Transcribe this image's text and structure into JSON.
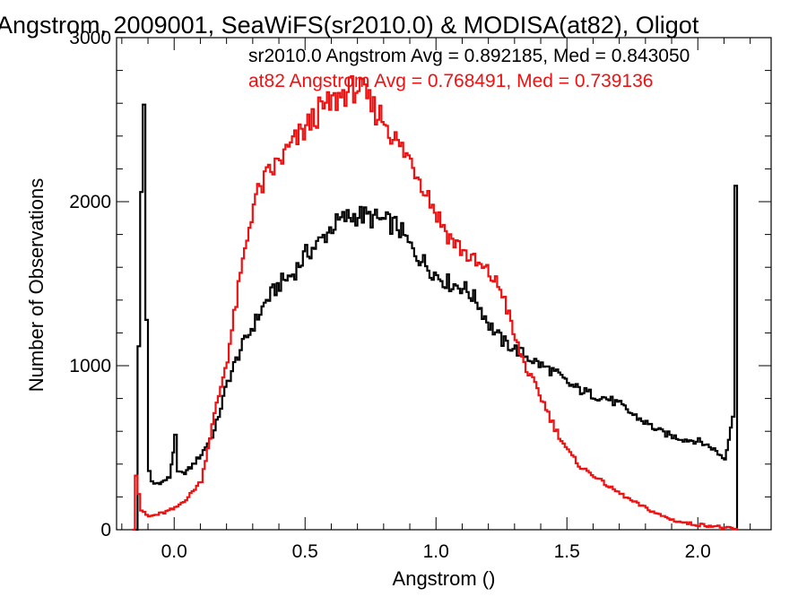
{
  "chart_data": {
    "type": "line",
    "title": "Angstrom, 2009001, SeaWiFS(sr2010.0) & MODISA(at82), Oligot",
    "xlabel": "Angstrom ()",
    "ylabel": "Number of Observations",
    "xlim": [
      -0.22,
      2.28
    ],
    "ylim": [
      0,
      3000
    ],
    "x_ticks": [
      0.0,
      0.5,
      1.0,
      1.5,
      2.0
    ],
    "x_tick_labels": [
      "0.0",
      "0.5",
      "1.0",
      "1.5",
      "2.0"
    ],
    "y_ticks": [
      0,
      1000,
      2000,
      3000
    ],
    "y_tick_labels": [
      "0",
      "1000",
      "2000",
      "3000"
    ],
    "grid": false,
    "line_style": "step",
    "annotations": [
      {
        "text": "sr2010.0 Angstrom Avg = 0.892185, Med = 0.843050",
        "color": "#000000"
      },
      {
        "text": "at82 Angstrom Avg = 0.768491, Med = 0.739136",
        "color": "#ee1111"
      }
    ],
    "series": [
      {
        "color": "#000000",
        "x": [
          -0.15,
          -0.14,
          -0.13,
          -0.12,
          -0.11,
          -0.1,
          -0.09,
          -0.08,
          -0.05,
          -0.02,
          0.0,
          0.01,
          0.03,
          0.06,
          0.1,
          0.15,
          0.2,
          0.25,
          0.3,
          0.35,
          0.4,
          0.45,
          0.5,
          0.55,
          0.6,
          0.65,
          0.7,
          0.75,
          0.8,
          0.85,
          0.9,
          0.95,
          1.0,
          1.05,
          1.1,
          1.15,
          1.2,
          1.25,
          1.3,
          1.35,
          1.4,
          1.45,
          1.5,
          1.55,
          1.6,
          1.65,
          1.7,
          1.75,
          1.8,
          1.85,
          1.9,
          1.95,
          2.0,
          2.05,
          2.1,
          2.13,
          2.14,
          2.15
        ],
        "y": [
          0,
          1100,
          2050,
          2600,
          1300,
          350,
          290,
          280,
          290,
          320,
          560,
          350,
          340,
          380,
          460,
          600,
          900,
          1100,
          1250,
          1400,
          1500,
          1560,
          1680,
          1750,
          1850,
          1900,
          1920,
          1900,
          1880,
          1850,
          1720,
          1630,
          1550,
          1500,
          1480,
          1400,
          1250,
          1150,
          1100,
          1050,
          1000,
          960,
          890,
          850,
          820,
          800,
          760,
          700,
          650,
          600,
          570,
          550,
          540,
          500,
          430,
          700,
          2100,
          0
        ]
      },
      {
        "color": "#ee1111",
        "x": [
          -0.16,
          -0.15,
          -0.14,
          -0.13,
          -0.12,
          -0.1,
          -0.05,
          0.0,
          0.05,
          0.1,
          0.15,
          0.2,
          0.25,
          0.3,
          0.35,
          0.4,
          0.45,
          0.5,
          0.55,
          0.6,
          0.65,
          0.7,
          0.75,
          0.8,
          0.85,
          0.9,
          0.95,
          1.0,
          1.05,
          1.1,
          1.15,
          1.2,
          1.25,
          1.3,
          1.35,
          1.4,
          1.45,
          1.5,
          1.55,
          1.6,
          1.65,
          1.7,
          1.75,
          1.8,
          1.85,
          1.9,
          1.95,
          2.0,
          2.05,
          2.1,
          2.15
        ],
        "y": [
          0,
          340,
          220,
          120,
          100,
          80,
          100,
          130,
          200,
          300,
          700,
          1050,
          1550,
          2000,
          2150,
          2250,
          2350,
          2450,
          2550,
          2600,
          2670,
          2700,
          2580,
          2500,
          2350,
          2250,
          2100,
          1920,
          1780,
          1700,
          1620,
          1560,
          1450,
          1150,
          950,
          800,
          620,
          480,
          380,
          330,
          270,
          220,
          170,
          130,
          90,
          60,
          40,
          30,
          25,
          10,
          0
        ]
      }
    ]
  }
}
